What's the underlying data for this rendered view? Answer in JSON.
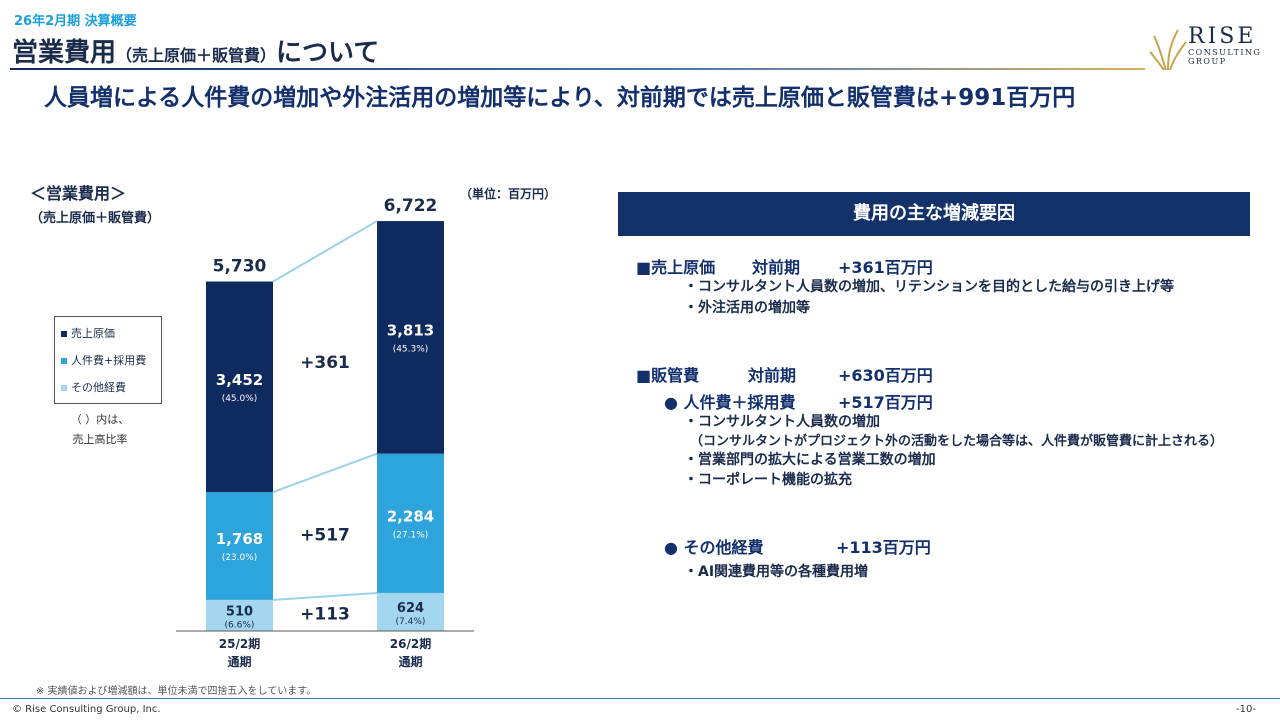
{
  "header": {
    "period": "26年2月期 決算概要",
    "title_main": "営業費用",
    "title_paren": "（売上原価＋販管費）",
    "title_suffix": "について",
    "headline": "人員増による人件費の増加や外注活用の増加等により、対前期では売上原価と販管費は+991百万円"
  },
  "logo": {
    "name": "RISE",
    "line1": "CONSULTING",
    "line2": "GROUP"
  },
  "chart_caption": {
    "line1": "＜営業費用＞",
    "line2": "（売上原価＋販管費）"
  },
  "unit_label": "（単位：百万円）",
  "legend_note": {
    "line1": "（ ）内は、",
    "line2": "売上高比率"
  },
  "chart_data": {
    "type": "bar",
    "stacked": true,
    "categories": [
      "25/2期\n通期",
      "26/2期\n通期"
    ],
    "category_lines": [
      [
        "25/2期",
        "通期"
      ],
      [
        "26/2期",
        "通期"
      ]
    ],
    "series": [
      {
        "name": "その他経費",
        "values": [
          510,
          624
        ],
        "ratios": [
          "(6.6%)",
          "(7.4%)"
        ],
        "color": "#a3d7f0",
        "text_color": "#1a2b4c"
      },
      {
        "name": "人件費+採用費",
        "values": [
          1768,
          2284
        ],
        "ratios": [
          "(23.0%)",
          "(27.1%)"
        ],
        "color": "#2ea4dc",
        "text_color": "#ffffff"
      },
      {
        "name": "売上原価",
        "values": [
          3452,
          3813
        ],
        "ratios": [
          "(45.0%)",
          "(45.3%)"
        ],
        "color": "#0e2a5e",
        "text_color": "#ffffff"
      }
    ],
    "value_labels": [
      [
        "510",
        "1,768",
        "3,452"
      ],
      [
        "624",
        "2,284",
        "3,813"
      ]
    ],
    "totals": [
      5730,
      6722
    ],
    "total_labels": [
      "5,730",
      "6,722"
    ],
    "differences": [
      "+113",
      "+517",
      "+361"
    ],
    "ylim": [
      0,
      6722
    ],
    "connector_color": "#9dd0ea",
    "legend_order": [
      "売上原価",
      "人件費+採用費",
      "その他経費"
    ]
  },
  "factors": {
    "title": "費用の主な増減要因",
    "cogs": {
      "label": "■売上原価",
      "compare": "対前期",
      "amount": "+361百万円",
      "items": [
        "・コンサルタント人員数の増加、リテンションを目的とした給与の引き上げ等",
        "・外注活用の増加等"
      ]
    },
    "sga": {
      "label": "■販管費",
      "compare": "対前期",
      "amount": "+630百万円"
    },
    "personnel": {
      "label": "● 人件費＋採用費",
      "amount": "+517百万円",
      "items": [
        "・コンサルタント人員数の増加",
        "（コンサルタントがプロジェクト外の活動をした場合等は、人件費が販管費に計上される）",
        "・営業部門の拡大による営業工数の増加",
        "・コーポレート機能の拡充"
      ]
    },
    "other": {
      "label": "● その他経費",
      "amount": "+113百万円",
      "items": [
        "・AI関連費用等の各種費用増"
      ]
    }
  },
  "footer": {
    "footnote": "※ 実績値および増減額は、単位未満で四捨五入をしています。",
    "copyright": "© Rise Consulting Group, Inc.",
    "page": "-10-"
  }
}
